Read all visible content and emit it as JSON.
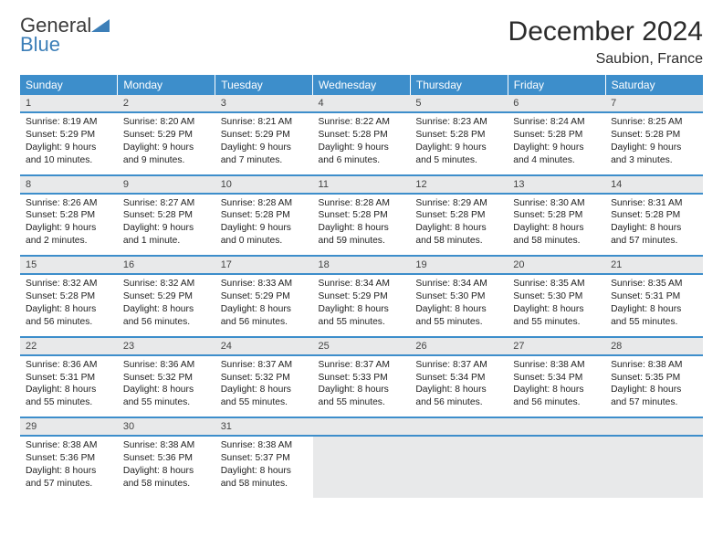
{
  "logo": {
    "word1": "General",
    "word2": "Blue"
  },
  "title": "December 2024",
  "location": "Saubion, France",
  "header_bg": "#3d8ecb",
  "header_text": "#ffffff",
  "daynum_bg": "#e8e9ea",
  "row_border": "#3d8ecb",
  "weekdays": [
    "Sunday",
    "Monday",
    "Tuesday",
    "Wednesday",
    "Thursday",
    "Friday",
    "Saturday"
  ],
  "font_family": "Arial",
  "font_size_title": 30,
  "font_size_location": 16,
  "font_size_header": 12,
  "font_size_daynum": 11,
  "font_size_body": 10.3,
  "weeks": [
    [
      {
        "n": "1",
        "sr": "8:19 AM",
        "ss": "5:29 PM",
        "dl": "9 hours and 10 minutes."
      },
      {
        "n": "2",
        "sr": "8:20 AM",
        "ss": "5:29 PM",
        "dl": "9 hours and 9 minutes."
      },
      {
        "n": "3",
        "sr": "8:21 AM",
        "ss": "5:29 PM",
        "dl": "9 hours and 7 minutes."
      },
      {
        "n": "4",
        "sr": "8:22 AM",
        "ss": "5:28 PM",
        "dl": "9 hours and 6 minutes."
      },
      {
        "n": "5",
        "sr": "8:23 AM",
        "ss": "5:28 PM",
        "dl": "9 hours and 5 minutes."
      },
      {
        "n": "6",
        "sr": "8:24 AM",
        "ss": "5:28 PM",
        "dl": "9 hours and 4 minutes."
      },
      {
        "n": "7",
        "sr": "8:25 AM",
        "ss": "5:28 PM",
        "dl": "9 hours and 3 minutes."
      }
    ],
    [
      {
        "n": "8",
        "sr": "8:26 AM",
        "ss": "5:28 PM",
        "dl": "9 hours and 2 minutes."
      },
      {
        "n": "9",
        "sr": "8:27 AM",
        "ss": "5:28 PM",
        "dl": "9 hours and 1 minute."
      },
      {
        "n": "10",
        "sr": "8:28 AM",
        "ss": "5:28 PM",
        "dl": "9 hours and 0 minutes."
      },
      {
        "n": "11",
        "sr": "8:28 AM",
        "ss": "5:28 PM",
        "dl": "8 hours and 59 minutes."
      },
      {
        "n": "12",
        "sr": "8:29 AM",
        "ss": "5:28 PM",
        "dl": "8 hours and 58 minutes."
      },
      {
        "n": "13",
        "sr": "8:30 AM",
        "ss": "5:28 PM",
        "dl": "8 hours and 58 minutes."
      },
      {
        "n": "14",
        "sr": "8:31 AM",
        "ss": "5:28 PM",
        "dl": "8 hours and 57 minutes."
      }
    ],
    [
      {
        "n": "15",
        "sr": "8:32 AM",
        "ss": "5:28 PM",
        "dl": "8 hours and 56 minutes."
      },
      {
        "n": "16",
        "sr": "8:32 AM",
        "ss": "5:29 PM",
        "dl": "8 hours and 56 minutes."
      },
      {
        "n": "17",
        "sr": "8:33 AM",
        "ss": "5:29 PM",
        "dl": "8 hours and 56 minutes."
      },
      {
        "n": "18",
        "sr": "8:34 AM",
        "ss": "5:29 PM",
        "dl": "8 hours and 55 minutes."
      },
      {
        "n": "19",
        "sr": "8:34 AM",
        "ss": "5:30 PM",
        "dl": "8 hours and 55 minutes."
      },
      {
        "n": "20",
        "sr": "8:35 AM",
        "ss": "5:30 PM",
        "dl": "8 hours and 55 minutes."
      },
      {
        "n": "21",
        "sr": "8:35 AM",
        "ss": "5:31 PM",
        "dl": "8 hours and 55 minutes."
      }
    ],
    [
      {
        "n": "22",
        "sr": "8:36 AM",
        "ss": "5:31 PM",
        "dl": "8 hours and 55 minutes."
      },
      {
        "n": "23",
        "sr": "8:36 AM",
        "ss": "5:32 PM",
        "dl": "8 hours and 55 minutes."
      },
      {
        "n": "24",
        "sr": "8:37 AM",
        "ss": "5:32 PM",
        "dl": "8 hours and 55 minutes."
      },
      {
        "n": "25",
        "sr": "8:37 AM",
        "ss": "5:33 PM",
        "dl": "8 hours and 55 minutes."
      },
      {
        "n": "26",
        "sr": "8:37 AM",
        "ss": "5:34 PM",
        "dl": "8 hours and 56 minutes."
      },
      {
        "n": "27",
        "sr": "8:38 AM",
        "ss": "5:34 PM",
        "dl": "8 hours and 56 minutes."
      },
      {
        "n": "28",
        "sr": "8:38 AM",
        "ss": "5:35 PM",
        "dl": "8 hours and 57 minutes."
      }
    ],
    [
      {
        "n": "29",
        "sr": "8:38 AM",
        "ss": "5:36 PM",
        "dl": "8 hours and 57 minutes."
      },
      {
        "n": "30",
        "sr": "8:38 AM",
        "ss": "5:36 PM",
        "dl": "8 hours and 58 minutes."
      },
      {
        "n": "31",
        "sr": "8:38 AM",
        "ss": "5:37 PM",
        "dl": "8 hours and 58 minutes."
      },
      null,
      null,
      null,
      null
    ]
  ],
  "labels": {
    "sunrise": "Sunrise:",
    "sunset": "Sunset:",
    "daylight": "Daylight:"
  }
}
